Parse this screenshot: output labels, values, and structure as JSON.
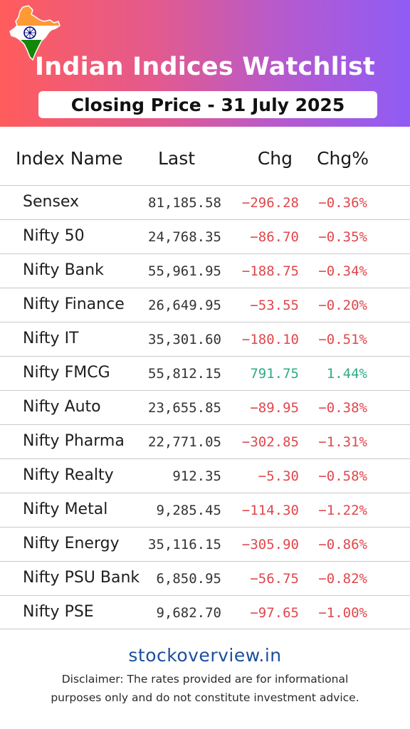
{
  "header": {
    "title": "Indian Indices Watchlist",
    "subtitle": "Closing Price - 31 July 2025",
    "icon": "india-map-flag-icon"
  },
  "colors": {
    "negative": "#e0474c",
    "positive": "#2eab86",
    "link": "#1b4f9c"
  },
  "table": {
    "columns": [
      "Index Name",
      "Last",
      "Chg",
      "Chg%"
    ],
    "rows": [
      {
        "name": "Sensex",
        "last": "81,185.58",
        "chg": "-296.28",
        "chgp": "-0.36%",
        "dir": "neg"
      },
      {
        "name": "Nifty 50",
        "last": "24,768.35",
        "chg": "-86.70",
        "chgp": "-0.35%",
        "dir": "neg"
      },
      {
        "name": "Nifty Bank",
        "last": "55,961.95",
        "chg": "-188.75",
        "chgp": "-0.34%",
        "dir": "neg"
      },
      {
        "name": "Nifty Finance",
        "last": "26,649.95",
        "chg": "-53.55",
        "chgp": "-0.20%",
        "dir": "neg"
      },
      {
        "name": "Nifty IT",
        "last": "35,301.60",
        "chg": "-180.10",
        "chgp": "-0.51%",
        "dir": "neg"
      },
      {
        "name": "Nifty FMCG",
        "last": "55,812.15",
        "chg": "791.75",
        "chgp": "1.44%",
        "dir": "pos"
      },
      {
        "name": "Nifty Auto",
        "last": "23,655.85",
        "chg": "-89.95",
        "chgp": "-0.38%",
        "dir": "neg"
      },
      {
        "name": "Nifty Pharma",
        "last": "22,771.05",
        "chg": "-302.85",
        "chgp": "-1.31%",
        "dir": "neg"
      },
      {
        "name": "Nifty Realty",
        "last": "912.35",
        "chg": "-5.30",
        "chgp": "-0.58%",
        "dir": "neg"
      },
      {
        "name": "Nifty Metal",
        "last": "9,285.45",
        "chg": "-114.30",
        "chgp": "-1.22%",
        "dir": "neg"
      },
      {
        "name": "Nifty Energy",
        "last": "35,116.15",
        "chg": "-305.90",
        "chgp": "-0.86%",
        "dir": "neg"
      },
      {
        "name": "Nifty PSU Bank",
        "last": "6,850.95",
        "chg": "-56.75",
        "chgp": "-0.82%",
        "dir": "neg"
      },
      {
        "name": "Nifty PSE",
        "last": "9,682.70",
        "chg": "-97.65",
        "chgp": "-1.00%",
        "dir": "neg"
      }
    ]
  },
  "footer": {
    "site": "stockoverview.in",
    "disclaimer_line1": "Disclaimer: The rates provided are for informational",
    "disclaimer_line2": "purposes only and do not constitute investment advice."
  }
}
